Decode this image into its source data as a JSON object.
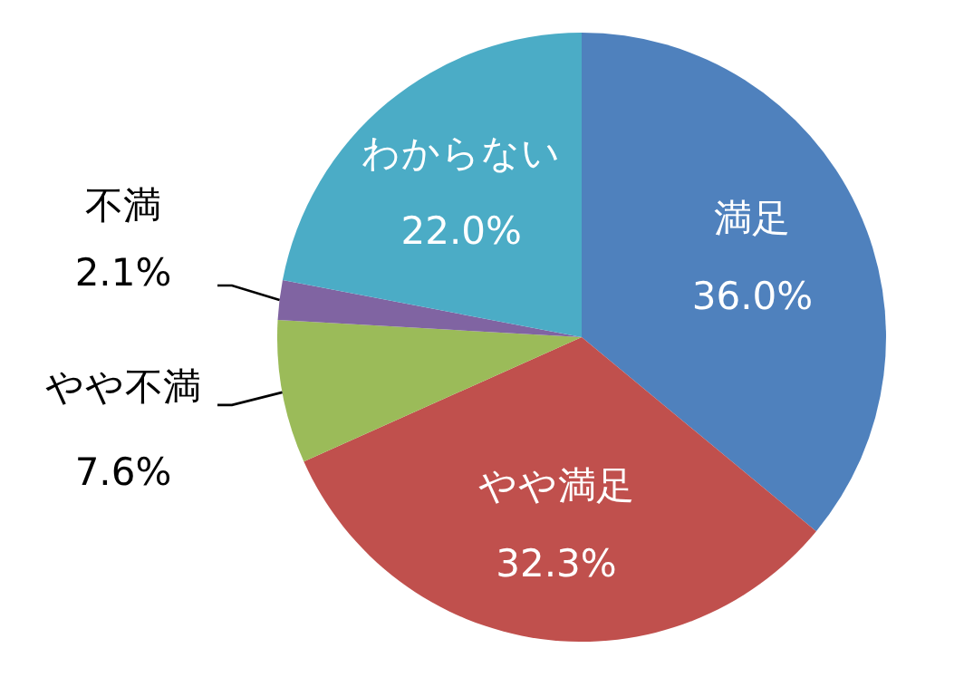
{
  "chart_data": {
    "type": "pie",
    "categories": [
      "満足",
      "やや満足",
      "やや不満",
      "不満",
      "わからない"
    ],
    "values": [
      36.0,
      32.3,
      7.6,
      2.1,
      22.0
    ],
    "value_labels": [
      "36.0%",
      "32.3%",
      "7.6%",
      "2.1%",
      "22.0%"
    ],
    "colors": [
      "#4f81bd",
      "#c0504d",
      "#9bbb59",
      "#8064a2",
      "#4bacc6"
    ],
    "legend": false
  }
}
